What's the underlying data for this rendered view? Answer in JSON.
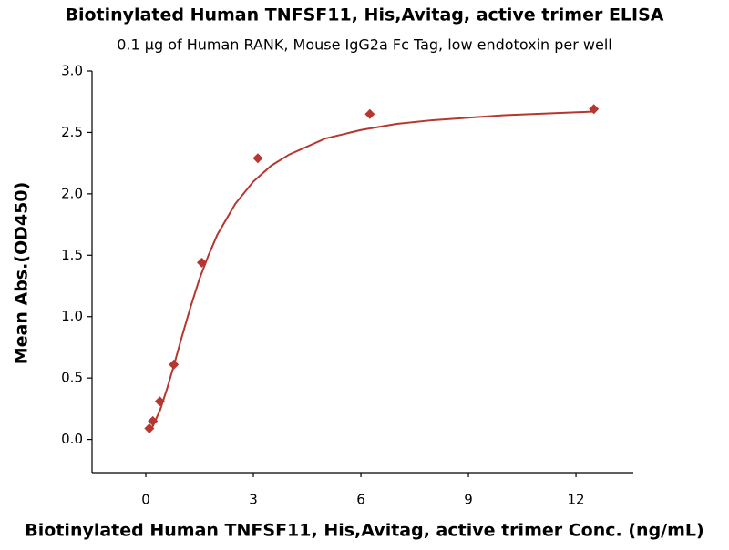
{
  "chart_data": {
    "type": "scatter",
    "title": "Biotinylated Human TNFSF11, His,Avitag, active trimer ELISA",
    "subtitle": "0.1 μg of Human RANK, Mouse IgG2a Fc Tag, low endotoxin per well",
    "x_label": "Biotinylated Human TNFSF11, His,Avitag, active trimer Conc. (ng/mL)",
    "y_label": "Mean Abs.(OD450)",
    "x": [
      0.098,
      0.195,
      0.391,
      0.781,
      1.563,
      3.125,
      6.25,
      12.5
    ],
    "series": [
      {
        "color": "#b5372f",
        "values": [
          0.09,
          0.15,
          0.31,
          0.61,
          1.44,
          2.29,
          2.65,
          2.69
        ]
      }
    ],
    "curve": {
      "color": "#b5372f",
      "x": [
        0.098,
        0.2,
        0.4,
        0.6,
        0.8,
        1,
        1.25,
        1.5,
        1.75,
        2,
        2.5,
        3,
        3.5,
        4,
        5,
        6,
        7,
        8,
        10,
        12.5
      ],
      "values": [
        0.07,
        0.11,
        0.24,
        0.42,
        0.62,
        0.83,
        1.08,
        1.31,
        1.5,
        1.67,
        1.92,
        2.1,
        2.23,
        2.32,
        2.45,
        2.52,
        2.57,
        2.6,
        2.64,
        2.67
      ]
    },
    "xlim": [
      -1.5,
      13.6
    ],
    "ylim": [
      -0.27,
      3.0
    ],
    "xticks": [
      0,
      3,
      6,
      9,
      12
    ],
    "yticks": [
      {
        "value": 0,
        "label": "0.0"
      },
      0.5,
      {
        "value": 1,
        "label": "1.0"
      },
      1.5,
      {
        "value": 2,
        "label": "2.0"
      },
      2.5,
      {
        "value": 3,
        "label": "3.0"
      }
    ],
    "grid": false
  }
}
